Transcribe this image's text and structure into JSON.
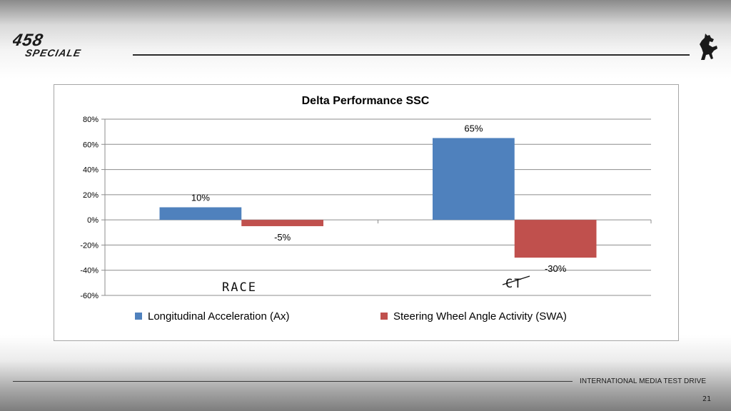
{
  "slide": {
    "brand": {
      "logo_line1": "458",
      "logo_line2": "SPECIALE"
    },
    "footer_title": "INTERNATIONAL MEDIA TEST DRIVE",
    "page_number": "21"
  },
  "chart_data": {
    "type": "bar",
    "title": "Delta Performance SSC",
    "categories": [
      "RACE",
      "CT"
    ],
    "category_labels_handwritten": true,
    "series": [
      {
        "name": "Longitudinal Acceleration (Ax)",
        "values": [
          10,
          65
        ],
        "color": "#4f81bd"
      },
      {
        "name": "Steering Wheel Angle Activity (SWA)",
        "values": [
          -5,
          -30
        ],
        "color": "#c0504d"
      }
    ],
    "data_labels": [
      [
        "10%",
        "65%"
      ],
      [
        "-5%",
        "-30%"
      ]
    ],
    "ylim": [
      -60,
      80
    ],
    "yticks": [
      80,
      60,
      40,
      20,
      0,
      -20,
      -40,
      -60
    ],
    "ytick_labels": [
      "80%",
      "60%",
      "40%",
      "20%",
      "0%",
      "-20%",
      "-40%",
      "-60%"
    ],
    "xlabel": "",
    "ylabel": "",
    "grid": true,
    "legend": "bottom"
  }
}
